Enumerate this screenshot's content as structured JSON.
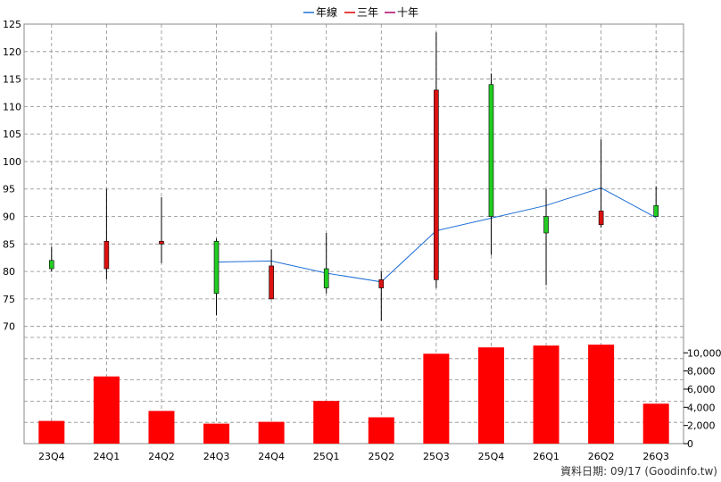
{
  "legend": [
    {
      "label": "年線",
      "color": "#1f6fd6"
    },
    {
      "label": "三年",
      "color": "#e00000"
    },
    {
      "label": "十年",
      "color": "#b0006a"
    }
  ],
  "footer": "資料日期: 09/17  (Goodinfo.tw)",
  "colors": {
    "up": "#22cc22",
    "down": "#dd1111",
    "volume": "#ff0000",
    "ma_line": "#1f6fd6",
    "grid": "#8c8c8c"
  },
  "chart_data": [
    {
      "type": "candlestick",
      "categories": [
        "23Q4",
        "24Q1",
        "24Q2",
        "24Q3",
        "24Q4",
        "25Q1",
        "25Q2",
        "25Q3",
        "25Q4",
        "26Q1",
        "26Q2",
        "26Q3"
      ],
      "ylim": [
        68,
        125
      ],
      "yticks": [
        70,
        75,
        80,
        85,
        90,
        95,
        100,
        105,
        110,
        115,
        120,
        125
      ],
      "candles": [
        {
          "open": 80.5,
          "close": 82.0,
          "high": 84.5,
          "low": 80.0
        },
        {
          "open": 85.5,
          "close": 80.5,
          "high": 95.0,
          "low": 78.5
        },
        {
          "open": 85.5,
          "close": 85.0,
          "high": 93.5,
          "low": 81.5
        },
        {
          "open": 76.0,
          "close": 85.5,
          "high": 86.0,
          "low": 72.0
        },
        {
          "open": 81.0,
          "close": 75.0,
          "high": 84.0,
          "low": 75.0
        },
        {
          "open": 77.0,
          "close": 80.5,
          "high": 87.0,
          "low": 76.0
        },
        {
          "open": 78.5,
          "close": 77.0,
          "high": 80.0,
          "low": 71.0
        },
        {
          "open": 113.0,
          "close": 78.5,
          "high": 123.5,
          "low": 77.0
        },
        {
          "open": 90.0,
          "close": 114.0,
          "high": 116.0,
          "low": 83.0
        },
        {
          "open": 87.0,
          "close": 90.0,
          "high": 95.0,
          "low": 77.5
        },
        {
          "open": 91.0,
          "close": 88.5,
          "high": 104.0,
          "low": 88.0
        },
        {
          "open": 90.0,
          "close": 92.0,
          "high": 95.5,
          "low": 90.0
        }
      ],
      "ma_year": [
        null,
        null,
        null,
        81.7,
        81.9,
        79.7,
        78.1,
        87.4,
        89.7,
        92.0,
        95.2,
        89.8
      ]
    },
    {
      "type": "bar",
      "categories": [
        "23Q4",
        "24Q1",
        "24Q2",
        "24Q3",
        "24Q4",
        "25Q1",
        "25Q2",
        "25Q3",
        "25Q4",
        "26Q1",
        "26Q2",
        "26Q3"
      ],
      "values": [
        2500,
        7400,
        3600,
        2200,
        2400,
        4700,
        2900,
        9900,
        10600,
        10800,
        10900,
        4400
      ],
      "ylim": [
        0,
        11700
      ],
      "yticks": [
        0,
        2000,
        4000,
        6000,
        8000,
        10000
      ],
      "ytick_labels": [
        "0",
        "2,000",
        "4,000",
        "6,000",
        "8,000",
        "10,000"
      ]
    }
  ]
}
